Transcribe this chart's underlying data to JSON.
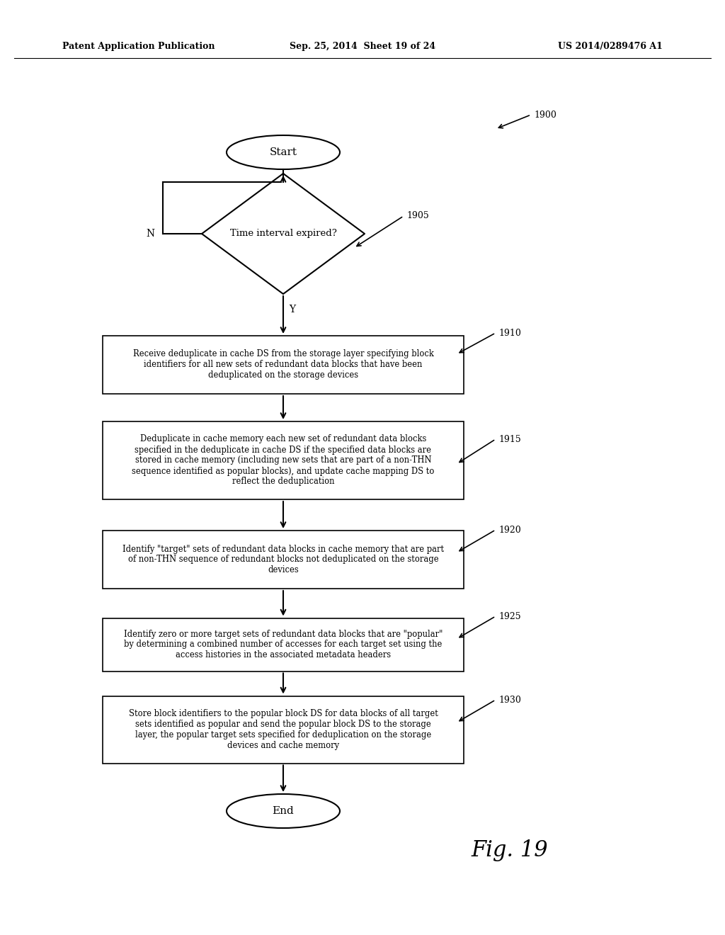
{
  "header_left": "Patent Application Publication",
  "header_center": "Sep. 25, 2014  Sheet 19 of 24",
  "header_right": "US 2014/0289476 A1",
  "fig_label": "Fig. 19",
  "background_color": "#ffffff",
  "start_label": "Start",
  "end_label": "End",
  "diamond_label": "Time interval expired?",
  "diamond_ref": "1905",
  "ref1900": "1900",
  "box1910_text": "Receive deduplicate in cache DS from the storage layer specifying block\nidentifiers for all new sets of redundant data blocks that have been\ndeduplicated on the storage devices",
  "box1910_ref": "1910",
  "box1915_text": "Deduplicate in cache memory each new set of redundant data blocks\nspecified in the deduplicate in cache DS if the specified data blocks are\nstored in cache memory (including new sets that are part of a non-THN\nsequence identified as popular blocks), and update cache mapping DS to\nreflect the deduplication",
  "box1915_ref": "1915",
  "box1920_text": "Identify \"target\" sets of redundant data blocks in cache memory that are part\nof non-THN sequence of redundant blocks not deduplicated on the storage\ndevices",
  "box1920_ref": "1920",
  "box1925_text": "Identify zero or more target sets of redundant data blocks that are \"popular\"\nby determining a combined number of accesses for each target set using the\naccess histories in the associated metadata headers",
  "box1925_ref": "1925",
  "box1930_text": "Store block identifiers to the popular block DS for data blocks of all target\nsets identified as popular and send the popular block DS to the storage\nlayer, the popular target sets specified for deduplication on the storage\ndevices and cache memory",
  "box1930_ref": "1930",
  "label_N": "N",
  "label_Y": "Y"
}
